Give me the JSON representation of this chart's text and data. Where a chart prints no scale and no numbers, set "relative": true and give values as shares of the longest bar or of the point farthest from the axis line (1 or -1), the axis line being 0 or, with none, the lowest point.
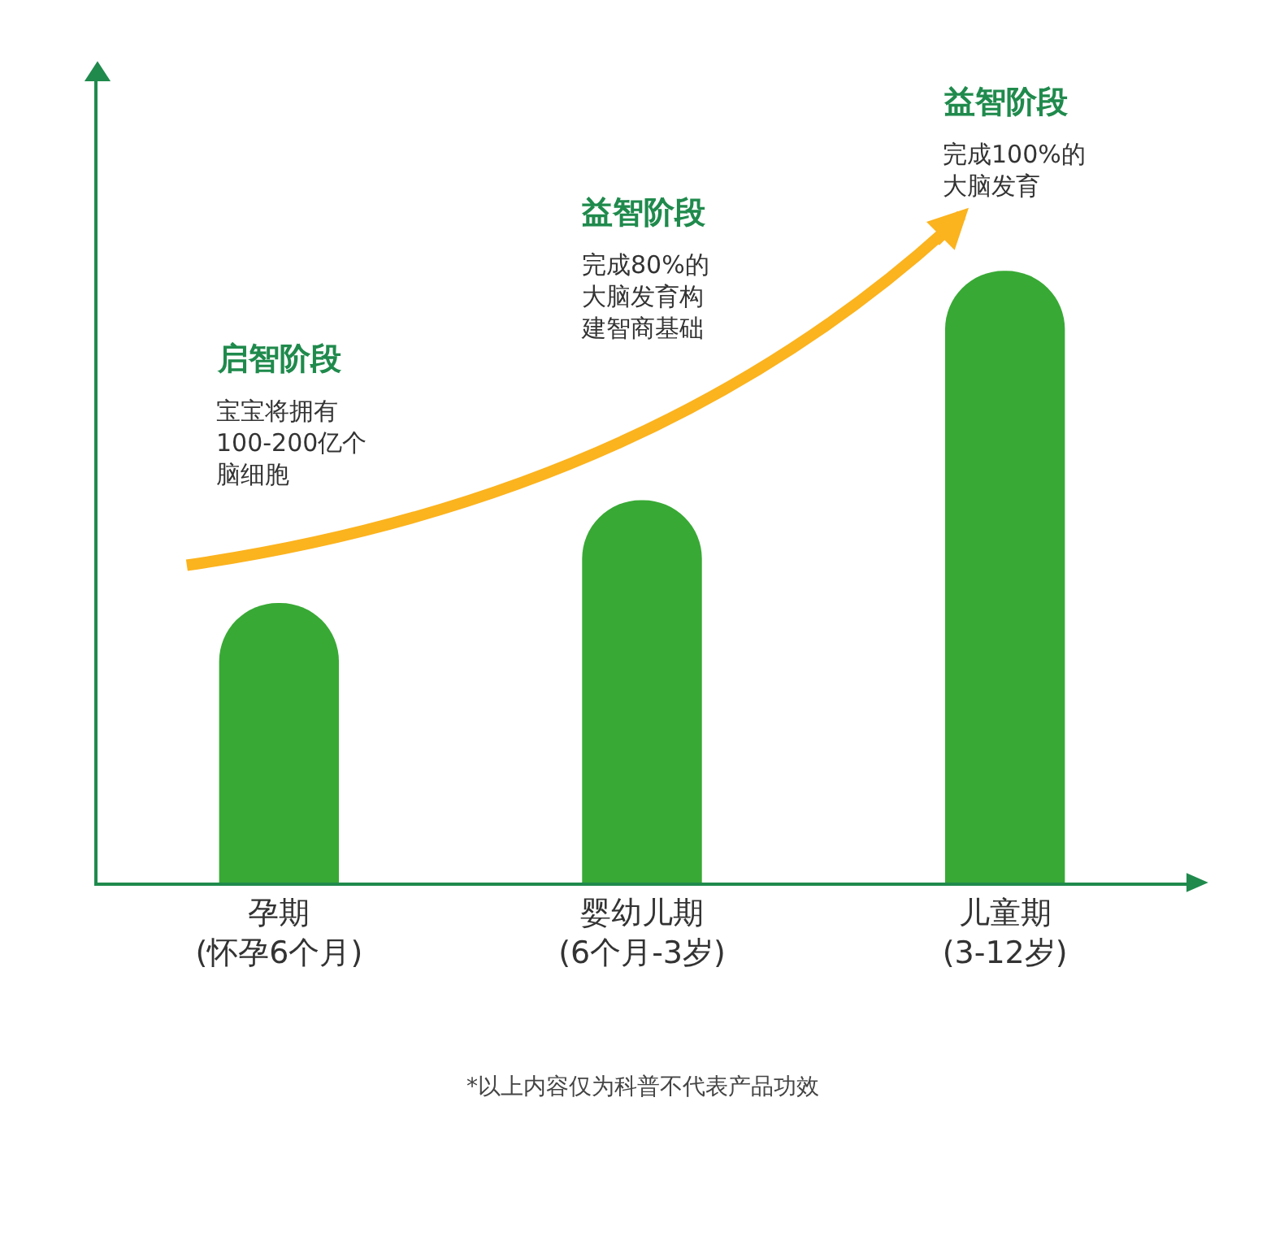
{
  "chart_data": {
    "type": "bar",
    "relative": true,
    "categories": [
      "孕期\n(怀孕6个月)",
      "婴幼儿期\n(6个月-3岁)",
      "儿童期\n(3-12岁)"
    ],
    "values": [
      0.457,
      0.625,
      1
    ],
    "color": "#38a935",
    "annotations": [
      "启智阶段",
      "宝宝将拥有100-200亿个脑细胞",
      "益智阶段",
      "完成80%的大脑发育构建智商基础",
      "益智阶段",
      "完成100%的大脑发育",
      "*以上内容仅为科普不代表产品功效"
    ],
    "grid": false,
    "legend": false
  }
}
